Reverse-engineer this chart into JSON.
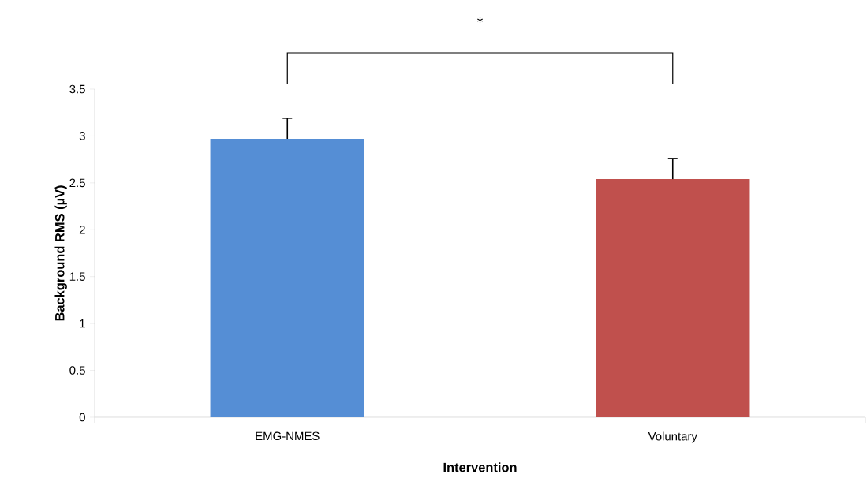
{
  "chart_data": {
    "type": "bar",
    "categories": [
      "EMG-NMES",
      "Voluntary"
    ],
    "values": [
      2.97,
      2.54
    ],
    "colors": [
      "#558ed5",
      "#c0504d"
    ],
    "errors": [
      [
        2.97,
        3.19
      ],
      [
        2.54,
        2.76
      ]
    ],
    "ylim": [
      0,
      3.5
    ],
    "yticks": [
      0,
      0.5,
      1,
      1.5,
      2,
      2.5,
      3,
      3.5
    ],
    "xlabel": "Intervention",
    "ylabel": "Background RMS (µV)",
    "annotations": [
      "*"
    ]
  }
}
